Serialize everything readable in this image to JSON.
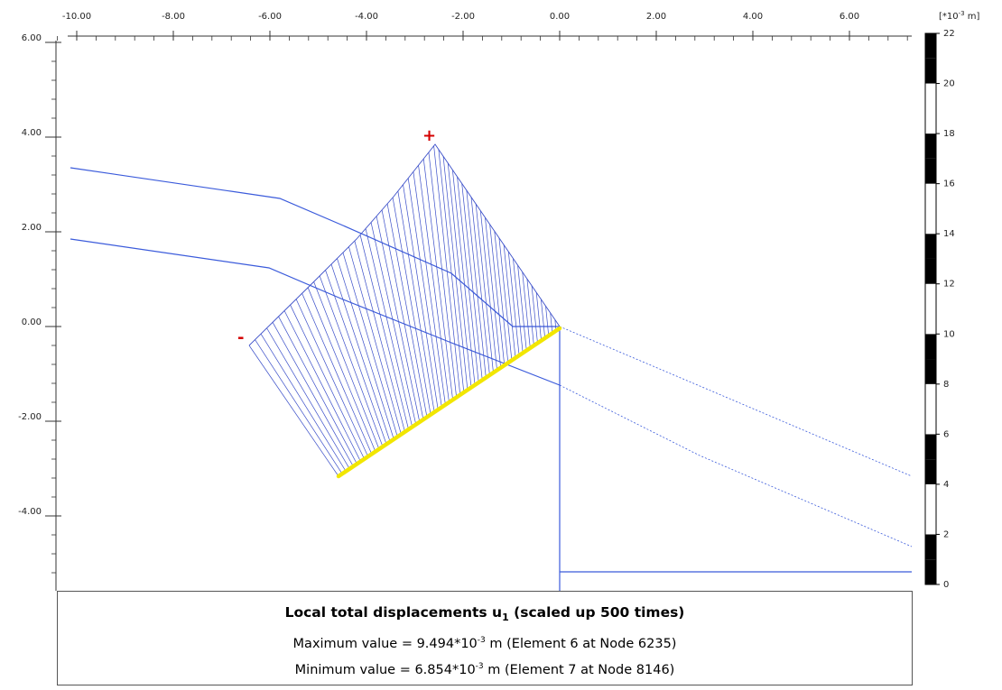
{
  "axis_top": {
    "ticks": [
      "-10.00",
      "-8.00",
      "-6.00",
      "-4.00",
      "-2.00",
      "0.00",
      "2.00",
      "4.00",
      "6.00"
    ]
  },
  "axis_left": {
    "ticks": [
      "6.00",
      "4.00",
      "2.00",
      "0.00",
      "-2.00",
      "-4.00"
    ]
  },
  "colorbar": {
    "unit_prefix": "[*10",
    "unit_exp": "-3",
    "unit_suffix": " m]",
    "ticks": [
      "22",
      "20",
      "18",
      "16",
      "14",
      "12",
      "10",
      "8",
      "6",
      "4",
      "2",
      "0"
    ]
  },
  "markers": {
    "plus": "+",
    "minus": "-"
  },
  "colors": {
    "geometry": "#3b5bdb",
    "hatch": "#3b4fc9",
    "wall": "#f2e600",
    "sign": "#d40000"
  },
  "legend": {
    "title_main": "Local total displacements u",
    "title_sub": "1",
    "title_rest": " (scaled up 500 times)",
    "max_prefix": "Maximum value = 9.494*10",
    "max_exp": "-3",
    "max_suffix": " m (Element 6 at Node 6235)",
    "min_prefix": "Minimum value = 6.854*10",
    "min_exp": "-3",
    "min_suffix": " m (Element 7 at Node 8146)"
  }
}
